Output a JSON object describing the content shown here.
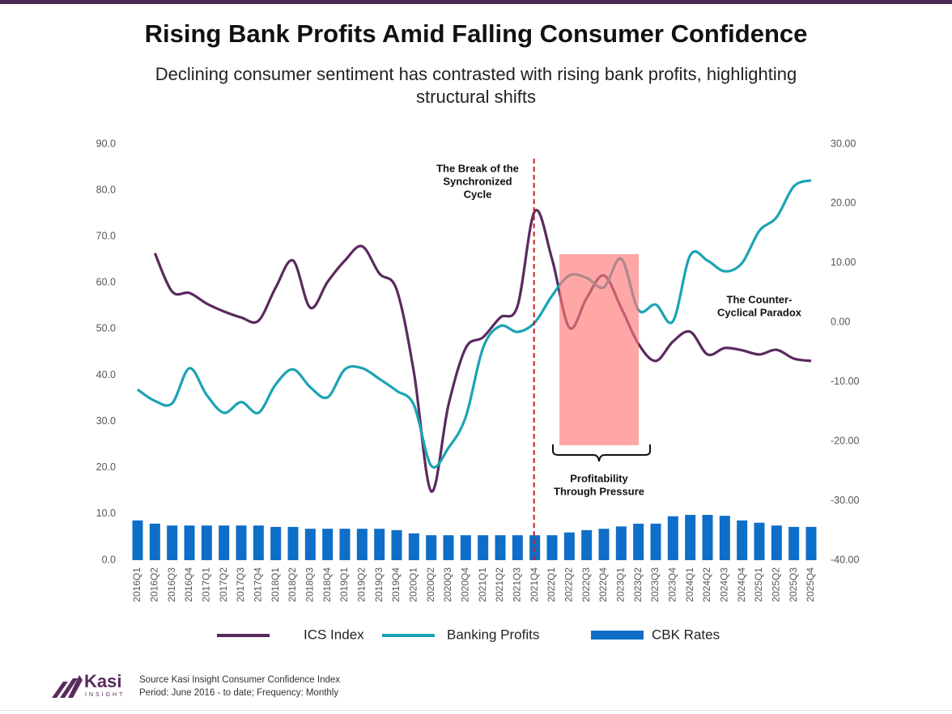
{
  "chart_data": {
    "type": "combo",
    "title": "Rising Bank Profits Amid Falling Consumer Confidence",
    "subtitle": "Declining consumer sentiment has contrasted with rising bank profits, highlighting structural shifts",
    "categories": [
      "2016Q1",
      "2016Q2",
      "2016Q3",
      "2016Q4",
      "2017Q1",
      "2017Q2",
      "2017Q3",
      "2017Q4",
      "2018Q1",
      "2018Q2",
      "2018Q3",
      "2018Q4",
      "2019Q1",
      "2019Q2",
      "2019Q3",
      "2019Q4",
      "2020Q1",
      "2020Q2",
      "2020Q3",
      "2020Q4",
      "2021Q1",
      "2021Q2",
      "2021Q3",
      "2021Q4",
      "2022Q1",
      "2022Q2",
      "2022Q3",
      "2022Q4",
      "2023Q1",
      "2023Q2",
      "2023Q3",
      "2023Q4",
      "2024Q1",
      "2024Q2",
      "2024Q3",
      "2024Q4",
      "2025Q1",
      "2025Q2",
      "2025Q3",
      "2025Q4"
    ],
    "series": [
      {
        "name": "ICS Index",
        "type": "line",
        "color": "#5a2a5f",
        "axis": "y",
        "values": [
          null,
          66.4,
          58.1,
          57.8,
          55.5,
          53.8,
          52.5,
          51.8,
          59.0,
          64.8,
          54.6,
          60.2,
          64.8,
          67.9,
          62.0,
          58.5,
          40.6,
          14.9,
          33.6,
          45.9,
          48.2,
          52.5,
          55.0,
          75.5,
          65.1,
          50.3,
          56.7,
          61.6,
          54.6,
          46.8,
          43.1,
          47.3,
          49.4,
          44.5,
          45.9,
          45.4,
          44.5,
          45.5,
          43.6,
          43.1
        ]
      },
      {
        "name": "Banking Profits",
        "type": "line",
        "color": "#1ba3b4",
        "axis": "y2",
        "values": [
          -11.3,
          -13.2,
          -13.6,
          -7.7,
          -12.2,
          -15.2,
          -13.4,
          -15.2,
          -10.4,
          -7.9,
          -10.9,
          -12.6,
          -7.9,
          -7.7,
          -9.5,
          -11.5,
          -13.9,
          -24.1,
          -21.1,
          -15.9,
          -4.3,
          -0.6,
          -1.6,
          0.0,
          4.5,
          7.9,
          7.5,
          5.9,
          10.7,
          2.1,
          3.0,
          0.2,
          11.3,
          10.4,
          8.6,
          10.0,
          15.4,
          17.7,
          22.9,
          23.9
        ]
      },
      {
        "name": "CBK Rates",
        "type": "bar",
        "color": "#0e6ec8",
        "axis": "y",
        "values": [
          8.6,
          7.9,
          7.5,
          7.5,
          7.5,
          7.5,
          7.5,
          7.5,
          7.2,
          7.2,
          6.8,
          6.8,
          6.8,
          6.8,
          6.8,
          6.5,
          5.8,
          5.4,
          5.4,
          5.4,
          5.4,
          5.4,
          5.4,
          5.4,
          5.4,
          6.0,
          6.5,
          6.8,
          7.3,
          7.9,
          7.9,
          9.5,
          9.8,
          9.8,
          9.6,
          8.6,
          8.1,
          7.5,
          7.2,
          7.2
        ]
      }
    ],
    "ylim": [
      0,
      90
    ],
    "yticks": [
      {
        "value": 0,
        "label": "0.0"
      },
      {
        "value": 10,
        "label": "10.0"
      },
      {
        "value": 20,
        "label": "20.0"
      },
      {
        "value": 30,
        "label": "30.0"
      },
      {
        "value": 40,
        "label": "40.0"
      },
      {
        "value": 50,
        "label": "50.0"
      },
      {
        "value": 60,
        "label": "60.0"
      },
      {
        "value": 70,
        "label": "70.0"
      },
      {
        "value": 80,
        "label": "80.0"
      },
      {
        "value": 90,
        "label": "90.0"
      }
    ],
    "y2lim": [
      -40,
      30
    ],
    "y2ticks": [
      {
        "value": -40,
        "label": "-40.00"
      },
      {
        "value": -30,
        "label": "-30.00"
      },
      {
        "value": -20,
        "label": "-20.00"
      },
      {
        "value": -10,
        "label": "-10.00"
      },
      {
        "value": 0,
        "label": "0.00"
      },
      {
        "value": 10,
        "label": "10.00"
      },
      {
        "value": 20,
        "label": "20.00"
      },
      {
        "value": 30,
        "label": "30.00"
      }
    ],
    "grid": false,
    "legend": "bottom",
    "annotations": {
      "break": [
        "The Break of the",
        "Synchronized",
        "Cycle"
      ],
      "paradox": [
        "The Counter-",
        "Cyclical Paradox"
      ],
      "pressure": [
        "Profitability",
        "Through Pressure"
      ]
    }
  },
  "footer": {
    "logo": "Kasi",
    "logo_sub": "INSIGHT",
    "source": "Source Kasi Insight Consumer Confidence Index",
    "period": "Period: June 2016 - to date; Frequency: Monthly"
  }
}
